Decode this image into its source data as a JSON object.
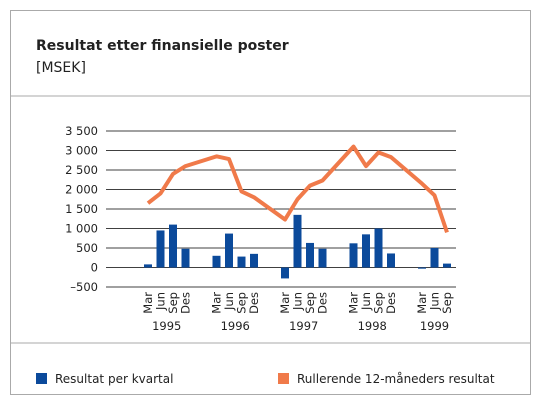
{
  "chart_data": {
    "type": "bar_line",
    "title": "Resultat etter finansielle poster",
    "subtitle": "[MSEK]",
    "category_groups": [
      {
        "label": "1995",
        "categories": [
          "Mar",
          "Jun",
          "Sep",
          "Des"
        ]
      },
      {
        "label": "1996",
        "categories": [
          "Mar",
          "Jun",
          "Sep",
          "Des"
        ]
      },
      {
        "label": "1997",
        "categories": [
          "Mar",
          "Jun",
          "Sep",
          "Des"
        ]
      },
      {
        "label": "1998",
        "categories": [
          "Mar",
          "Jun",
          "Sep",
          "Des"
        ]
      },
      {
        "label": "1999",
        "categories": [
          "Mar",
          "Jun",
          "Sep"
        ]
      }
    ],
    "series": [
      {
        "name": "Resultat per kvartal",
        "type": "bar",
        "color": "#0b4a9b",
        "values": [
          80,
          950,
          1100,
          480,
          300,
          870,
          280,
          350,
          -280,
          1350,
          630,
          480,
          620,
          850,
          1000,
          360,
          -30,
          500,
          100
        ]
      },
      {
        "name": "Rullerende 12-måneders resultat",
        "type": "line",
        "color": "#f07a4a",
        "values": [
          1650,
          1900,
          2400,
          2600,
          2850,
          2780,
          1950,
          1800,
          1230,
          1750,
          2100,
          2230,
          3100,
          2600,
          2950,
          2830,
          2150,
          1850,
          900
        ]
      }
    ],
    "ylim": [
      -500,
      3500
    ],
    "yticks": [
      {
        "value": -500,
        "label": "–500"
      },
      0,
      {
        "value": 500,
        "label": "500"
      },
      {
        "value": 1000,
        "label": "1 000"
      },
      {
        "value": 1500,
        "label": "1 500"
      },
      {
        "value": 2000,
        "label": "2 000"
      },
      {
        "value": 2500,
        "label": "2 500"
      },
      {
        "value": 3000,
        "label": "3 000"
      },
      {
        "value": 3500,
        "label": "3 500"
      }
    ],
    "grid": true
  }
}
